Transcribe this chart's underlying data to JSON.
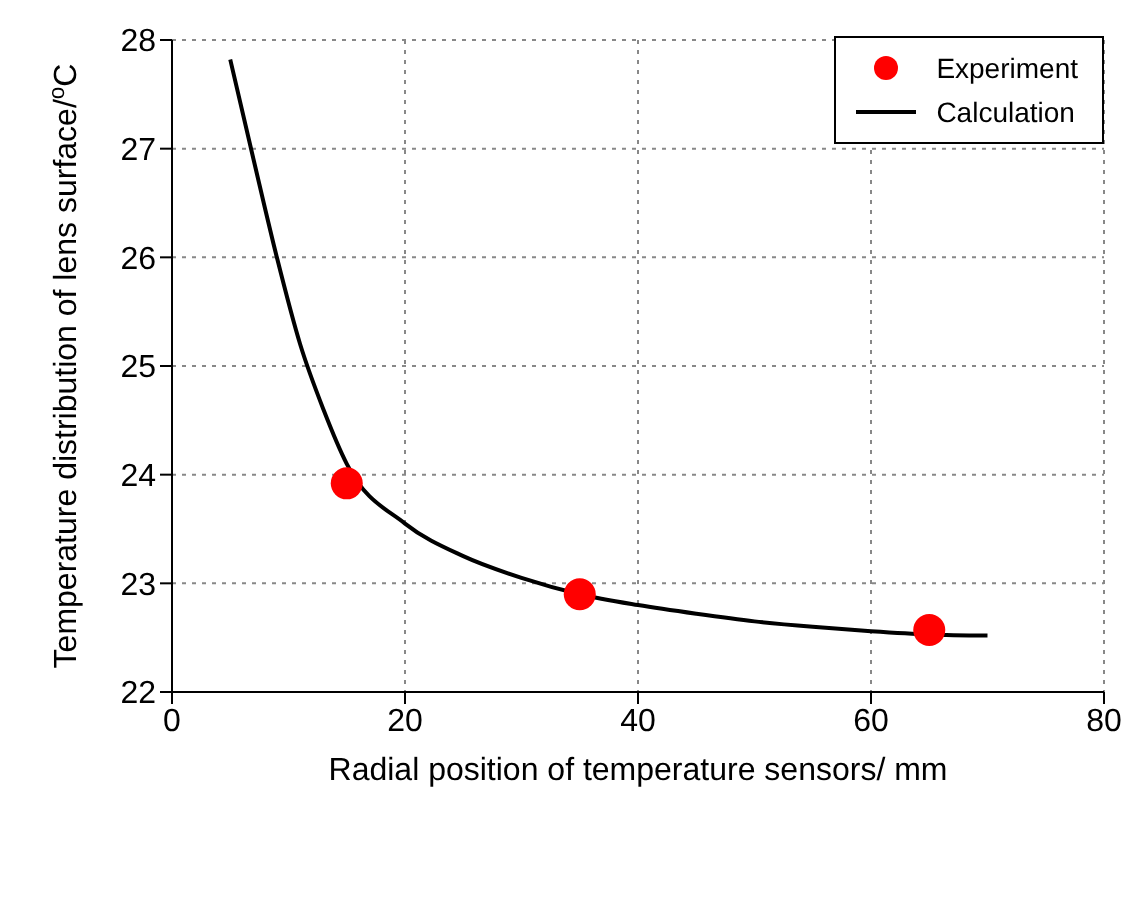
{
  "chart_data": {
    "type": "line",
    "xlabel": "Radial position of temperature sensors/ mm",
    "ylabel": "Temperature distribution of lens surface/$^{o}$C",
    "xlim": [
      0,
      80
    ],
    "xticks": [
      0,
      20,
      40,
      60,
      80
    ],
    "ylim": [
      22,
      28
    ],
    "yticks": [
      22,
      23,
      24,
      25,
      26,
      27,
      28
    ],
    "grid": true,
    "legend": "top right",
    "series": [
      {
        "name": "Experiment",
        "type": "scatter",
        "marker": "circle",
        "color": "#ff0000",
        "x": [
          15,
          35,
          65
        ],
        "values": [
          23.92,
          22.9,
          22.57
        ]
      },
      {
        "name": "Calculation",
        "marker": "none",
        "line_style": "solid",
        "color": "#000000",
        "x": [
          5,
          7,
          9,
          11,
          13,
          15,
          20,
          25,
          30,
          35,
          40,
          45,
          50,
          55,
          60,
          65,
          70
        ],
        "values": [
          27.82,
          26.9,
          26.0,
          25.2,
          24.6,
          24.1,
          23.55,
          23.25,
          23.05,
          22.9,
          22.8,
          22.72,
          22.65,
          22.6,
          22.56,
          22.53,
          22.52
        ]
      }
    ]
  }
}
